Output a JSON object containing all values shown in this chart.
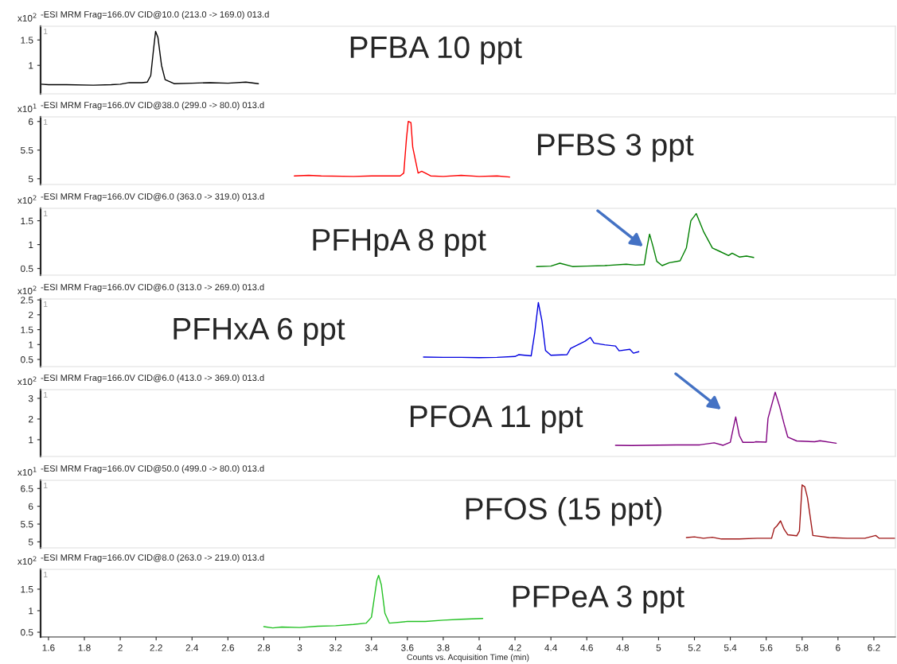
{
  "chart_data": [
    {
      "type": "line",
      "title": "-ESI MRM Frag=166.0V CID@10.0 (213.0 -> 169.0) 013.d",
      "ylabel": "x10$^{2}$",
      "xlim": [
        1.556,
        6.32
      ],
      "ylim": [
        0.44,
        1.77
      ],
      "yticks": [
        1,
        1.5
      ],
      "tick_labels": "y",
      "grid": false,
      "legend": false,
      "x": [
        1.56,
        1.6,
        1.7,
        1.85,
        1.95,
        2.0,
        2.05,
        2.12,
        2.15,
        2.17,
        2.185,
        2.197,
        2.21,
        2.23,
        2.25,
        2.3,
        2.4,
        2.5,
        2.6,
        2.7,
        2.77
      ],
      "series": [
        {
          "color": "#000000",
          "values": [
            0.63,
            0.62,
            0.62,
            0.61,
            0.62,
            0.63,
            0.66,
            0.66,
            0.67,
            0.8,
            1.3,
            1.67,
            1.55,
            1.0,
            0.72,
            0.64,
            0.65,
            0.66,
            0.65,
            0.67,
            0.64
          ]
        }
      ],
      "annotations": [
        "PFBA 10 ppt",
        "1"
      ]
    },
    {
      "type": "line",
      "title": "-ESI MRM Frag=166.0V CID@38.0 (299.0 -> 80.0) 013.d",
      "ylabel": "x10$^{1}$",
      "xlim": [
        1.556,
        6.32
      ],
      "ylim": [
        4.9,
        6.08
      ],
      "yticks": [
        5,
        5.5,
        6
      ],
      "tick_labels": "y",
      "grid": false,
      "legend": false,
      "x": [
        2.97,
        3.05,
        3.12,
        3.3,
        3.4,
        3.5,
        3.56,
        3.58,
        3.595,
        3.605,
        3.62,
        3.63,
        3.66,
        3.68,
        3.7,
        3.73,
        3.8,
        3.9,
        4.0,
        4.1,
        4.17
      ],
      "series": [
        {
          "color": "#ff0000",
          "values": [
            5.05,
            5.06,
            5.05,
            5.04,
            5.05,
            5.05,
            5.05,
            5.1,
            5.7,
            6.0,
            5.98,
            5.55,
            5.1,
            5.13,
            5.1,
            5.05,
            5.04,
            5.06,
            5.04,
            5.05,
            5.03
          ]
        }
      ],
      "annotations": [
        "PFBS 3 ppt",
        "1"
      ]
    },
    {
      "type": "line",
      "title": "-ESI MRM Frag=166.0V CID@6.0 (363.0 -> 319.0) 013.d",
      "ylabel": "x10$^{2}$",
      "xlim": [
        1.556,
        6.32
      ],
      "ylim": [
        0.36,
        1.76
      ],
      "yticks": [
        0.5,
        1,
        1.5
      ],
      "tick_labels": "y",
      "grid": false,
      "legend": false,
      "x": [
        4.32,
        4.4,
        4.45,
        4.52,
        4.6,
        4.7,
        4.82,
        4.87,
        4.92,
        4.935,
        4.95,
        4.97,
        4.99,
        5.02,
        5.06,
        5.12,
        5.155,
        5.18,
        5.21,
        5.25,
        5.3,
        5.34,
        5.39,
        5.41,
        5.45,
        5.49,
        5.53
      ],
      "series": [
        {
          "color": "#008000",
          "values": [
            0.54,
            0.55,
            0.61,
            0.54,
            0.55,
            0.56,
            0.59,
            0.57,
            0.58,
            0.93,
            1.22,
            0.95,
            0.65,
            0.56,
            0.62,
            0.66,
            0.93,
            1.5,
            1.65,
            1.28,
            0.93,
            0.86,
            0.77,
            0.82,
            0.74,
            0.76,
            0.73
          ]
        }
      ],
      "annotations": [
        "PFHpA 8 ppt",
        "1"
      ]
    },
    {
      "type": "line",
      "title": "-ESI MRM Frag=166.0V CID@6.0 (313.0 -> 269.0) 013.d",
      "ylabel": "x10$^{2}$",
      "xlim": [
        1.556,
        6.32
      ],
      "ylim": [
        0.26,
        2.53
      ],
      "yticks": [
        0.5,
        1,
        1.5,
        2,
        2.5
      ],
      "tick_labels": "y",
      "grid": false,
      "legend": false,
      "x": [
        3.69,
        3.8,
        3.9,
        4.0,
        4.1,
        4.2,
        4.22,
        4.29,
        4.31,
        4.33,
        4.35,
        4.37,
        4.4,
        4.49,
        4.51,
        4.59,
        4.62,
        4.64,
        4.7,
        4.76,
        4.78,
        4.84,
        4.86,
        4.89
      ],
      "series": [
        {
          "color": "#0000e0",
          "values": [
            0.58,
            0.57,
            0.57,
            0.56,
            0.57,
            0.6,
            0.66,
            0.62,
            1.4,
            2.41,
            1.8,
            0.8,
            0.64,
            0.66,
            0.87,
            1.11,
            1.24,
            1.05,
            0.99,
            0.95,
            0.79,
            0.84,
            0.71,
            0.76
          ]
        }
      ],
      "annotations": [
        "PFHxA 6 ppt",
        "1"
      ]
    },
    {
      "type": "line",
      "title": "-ESI MRM Frag=166.0V CID@6.0 (413.0 -> 369.0) 013.d",
      "ylabel": "x10$^{2}$",
      "xlim": [
        1.556,
        6.32
      ],
      "ylim": [
        0.19,
        3.42
      ],
      "yticks": [
        1,
        2,
        3
      ],
      "tick_labels": "y",
      "grid": false,
      "legend": false,
      "x": [
        4.76,
        4.85,
        5.0,
        5.1,
        5.23,
        5.31,
        5.36,
        5.4,
        5.415,
        5.43,
        5.45,
        5.47,
        5.53,
        5.54,
        5.6,
        5.61,
        5.65,
        5.675,
        5.7,
        5.72,
        5.77,
        5.87,
        5.9,
        5.99
      ],
      "series": [
        {
          "color": "#800080",
          "values": [
            0.73,
            0.72,
            0.74,
            0.75,
            0.75,
            0.85,
            0.73,
            0.88,
            1.5,
            2.1,
            1.21,
            0.87,
            0.87,
            0.9,
            0.88,
            2.03,
            3.3,
            2.6,
            1.75,
            1.13,
            0.94,
            0.9,
            0.95,
            0.83
          ]
        }
      ],
      "annotations": [
        "PFOA 11 ppt",
        "1"
      ]
    },
    {
      "type": "line",
      "title": "-ESI MRM Frag=166.0V CID@50.0 (499.0 -> 80.0) 013.d",
      "ylabel": "x10$^{1}$",
      "xlim": [
        1.556,
        6.32
      ],
      "ylim": [
        4.83,
        6.73
      ],
      "yticks": [
        5,
        5.5,
        6,
        6.5
      ],
      "tick_labels": "y",
      "grid": false,
      "legend": false,
      "x": [
        5.155,
        5.2,
        5.25,
        5.3,
        5.35,
        5.45,
        5.55,
        5.63,
        5.645,
        5.66,
        5.68,
        5.7,
        5.72,
        5.77,
        5.785,
        5.8,
        5.815,
        5.83,
        5.86,
        5.95,
        6.05,
        6.15,
        6.21,
        6.23,
        6.32
      ],
      "series": [
        {
          "color": "#a01818",
          "values": [
            5.12,
            5.14,
            5.1,
            5.13,
            5.08,
            5.08,
            5.1,
            5.1,
            5.38,
            5.45,
            5.59,
            5.35,
            5.2,
            5.17,
            5.3,
            6.6,
            6.55,
            6.24,
            5.18,
            5.12,
            5.1,
            5.1,
            5.18,
            5.1,
            5.1
          ]
        }
      ],
      "annotations": [
        "PFOS (15 ppt)",
        "1"
      ]
    },
    {
      "type": "line",
      "title": "-ESI MRM Frag=166.0V CID@8.0 (263.0 -> 219.0) 013.d",
      "ylabel": "x10$^{2}$",
      "xlabel": "Counts vs. Acquisition Time (min)",
      "xlim": [
        1.556,
        6.32
      ],
      "ylim": [
        0.39,
        1.96
      ],
      "yticks": [
        0.5,
        1,
        1.5
      ],
      "xticks": [
        1.6,
        1.8,
        2,
        2.2,
        2.4,
        2.6,
        2.8,
        3,
        3.2,
        3.4,
        3.6,
        3.8,
        4,
        4.2,
        4.4,
        4.6,
        4.8,
        5,
        5.2,
        5.4,
        5.6,
        5.8,
        6,
        6.2
      ],
      "grid": false,
      "legend": false,
      "x": [
        2.8,
        2.85,
        2.9,
        3.0,
        3.1,
        3.2,
        3.3,
        3.37,
        3.4,
        3.43,
        3.44,
        3.455,
        3.475,
        3.5,
        3.6,
        3.7,
        3.8,
        3.9,
        4.02
      ],
      "series": [
        {
          "color": "#22c022",
          "values": [
            0.63,
            0.6,
            0.62,
            0.61,
            0.64,
            0.65,
            0.68,
            0.71,
            0.85,
            1.7,
            1.82,
            1.6,
            0.94,
            0.71,
            0.75,
            0.75,
            0.78,
            0.8,
            0.82
          ]
        }
      ],
      "annotations": [
        "PFPeA 3 ppt",
        "1"
      ]
    }
  ]
}
